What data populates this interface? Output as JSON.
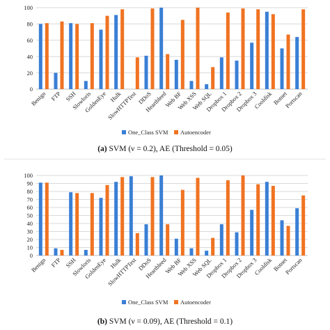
{
  "colors": {
    "one_class_svm": "#3A7FD5",
    "autoencoder": "#F07322",
    "grid": "#d9d9d9",
    "axis": "#bfbfbf"
  },
  "chart_data": [
    {
      "type": "bar",
      "title": "",
      "xlabel": "",
      "ylabel": "",
      "ylim": [
        0,
        100
      ],
      "yticks": [
        0,
        20,
        40,
        60,
        80,
        100
      ],
      "grid": true,
      "legend_position": "bottom",
      "categories": [
        "Benign",
        "FTP",
        "SSH",
        "Slowloris",
        "GoldenEye",
        "Hulk",
        "SlowHTTPTest",
        "DDoS",
        "Heartbleed",
        "Web BF",
        "Web XSS",
        "Web SQL",
        "Dropbox 1",
        "Dropbox 2",
        "Dropbox 3",
        "Cooldisk",
        "Botnet",
        "Portscan"
      ],
      "series": [
        {
          "name": "One_Class SVM",
          "values": [
            80,
            20,
            81,
            10,
            73,
            91,
            0,
            41,
            100,
            36,
            10,
            6,
            39,
            35,
            57,
            95,
            50,
            64
          ]
        },
        {
          "name": "Autoencoder",
          "values": [
            81,
            83,
            80,
            81,
            90,
            98,
            39,
            99,
            43,
            85,
            100,
            27,
            94,
            99,
            98,
            92,
            67,
            98
          ]
        }
      ],
      "caption": {
        "label": "(a)",
        "text": "SVM (ν = 0.2), AE (Threshold = 0.05)"
      }
    },
    {
      "type": "bar",
      "title": "",
      "xlabel": "",
      "ylabel": "",
      "ylim": [
        0,
        100
      ],
      "yticks": [
        0,
        10,
        20,
        30,
        40,
        50,
        60,
        70,
        80,
        90,
        100
      ],
      "grid": true,
      "legend_position": "bottom",
      "categories": [
        "Benign",
        "FTP",
        "SSH",
        "Slowloris",
        "GoldenEye",
        "Hulk",
        "SlowHTTPTest",
        "DDoS",
        "Heartbleed",
        "Web BF",
        "Web XSS",
        "Web SQL",
        "Dropbox 1",
        "Dropbox 2",
        "Dropbox 3",
        "Cooldisk",
        "Botnet",
        "Portscan"
      ],
      "series": [
        {
          "name": "One_Class SVM",
          "values": [
            91,
            9,
            79,
            7,
            72,
            92,
            99,
            39,
            100,
            21,
            9,
            6,
            39,
            29,
            57,
            92,
            44,
            59
          ]
        },
        {
          "name": "Autoencoder",
          "values": [
            91,
            7,
            78,
            78,
            88,
            98,
            28,
            98,
            39,
            82,
            97,
            22,
            94,
            100,
            89,
            87,
            37,
            75
          ]
        }
      ],
      "caption": {
        "label": "(b)",
        "text": "SVM (ν = 0.09), AE (Threshold = 0.1)"
      }
    }
  ]
}
